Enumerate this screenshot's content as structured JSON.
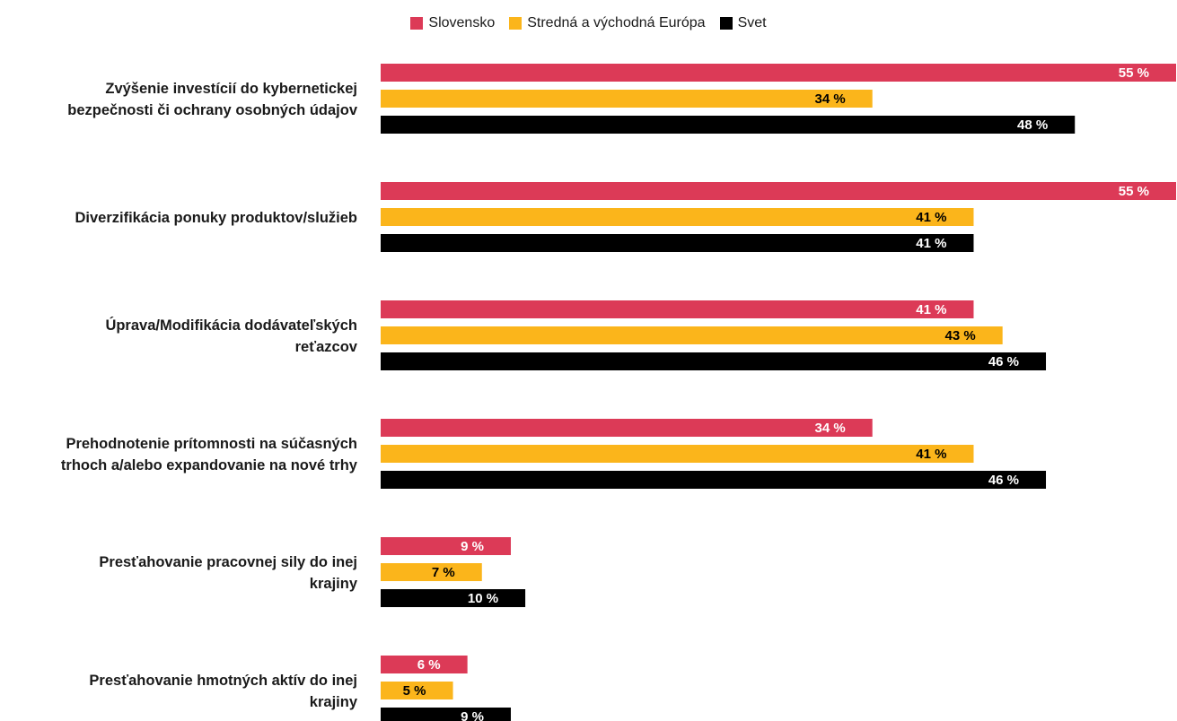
{
  "legend": [
    {
      "name": "Slovensko",
      "color": "#dc3a57"
    },
    {
      "name": "Stredná a východná Európa",
      "color": "#fbb51b"
    },
    {
      "name": "Svet",
      "color": "#000000"
    }
  ],
  "chart_data": {
    "type": "bar",
    "orientation": "horizontal",
    "title": "",
    "xlabel": "",
    "ylabel": "",
    "xlim": [
      0,
      55
    ],
    "grid": false,
    "legend_position": "top-center",
    "value_suffix": " %",
    "categories": [
      [
        "Zvýšenie investícií do kybernetickej",
        "bezpečnosti či ochrany osobných údajov"
      ],
      [
        "Diverzifikácia ponuky produktov/služieb"
      ],
      [
        "Úprava/Modifikácia dodávateľských",
        "reťazcov"
      ],
      [
        "Prehodnotenie prítomnosti na súčasných",
        "trhoch a/alebo expandovanie na nové trhy"
      ],
      [
        "Presťahovanie pracovnej sily do inej",
        "krajiny"
      ],
      [
        "Presťahovanie hmotných aktív do inej",
        "krajiny"
      ]
    ],
    "series": [
      {
        "name": "Slovensko",
        "color": "#dc3a57",
        "label_color": "#ffffff",
        "values": [
          55,
          55,
          41,
          34,
          9,
          6
        ]
      },
      {
        "name": "Stredná a východná Európa",
        "color": "#fbb51b",
        "label_color": "#000000",
        "values": [
          34,
          41,
          43,
          41,
          7,
          5
        ]
      },
      {
        "name": "Svet",
        "color": "#000000",
        "label_color": "#ffffff",
        "values": [
          48,
          41,
          46,
          46,
          10,
          9
        ]
      }
    ]
  }
}
